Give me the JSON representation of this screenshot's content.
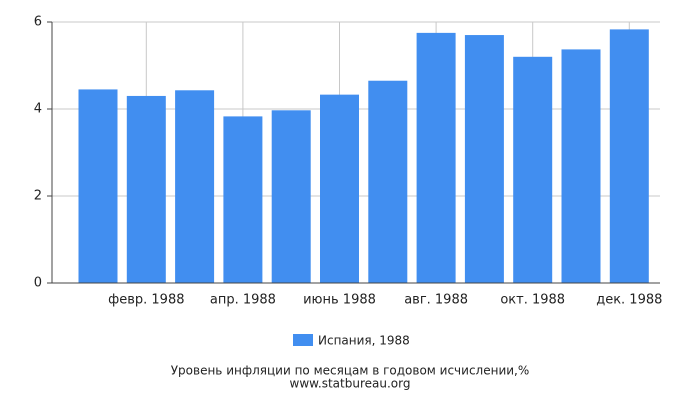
{
  "chart_data": {
    "type": "bar",
    "title": "Уровень инфляции по месяцам в годовом исчислении,%",
    "subtitle": "www.statbureau.org",
    "categories": [
      null,
      "февр. 1988",
      null,
      "апр. 1988",
      null,
      "июнь 1988",
      null,
      "авг. 1988",
      null,
      "окт. 1988",
      null,
      "дек. 1988"
    ],
    "series": [
      {
        "name": "Испания, 1988",
        "color": "#418ef0",
        "values": [
          4.45,
          4.3,
          4.43,
          3.83,
          3.97,
          4.33,
          4.65,
          5.75,
          5.7,
          5.2,
          5.37,
          5.83
        ]
      }
    ],
    "ylim": [
      0,
      6
    ],
    "yticks": [
      0,
      2,
      4,
      6
    ],
    "grid": true,
    "legend": "bottom"
  }
}
